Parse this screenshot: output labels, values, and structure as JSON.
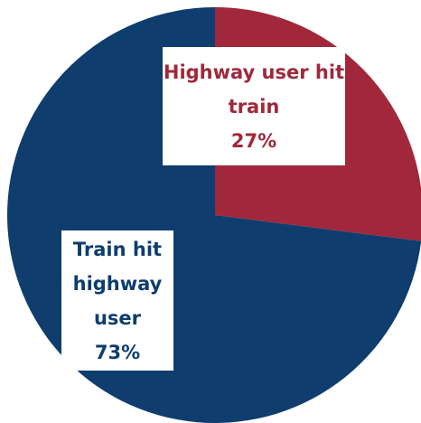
{
  "chart_data": {
    "type": "pie",
    "categories": [
      "Highway user hit train",
      "Train hit highway user"
    ],
    "values": [
      27,
      73
    ],
    "value_labels": [
      "27%",
      "73%"
    ],
    "colors": [
      "#a0283a",
      "#0e3d6e"
    ]
  }
}
